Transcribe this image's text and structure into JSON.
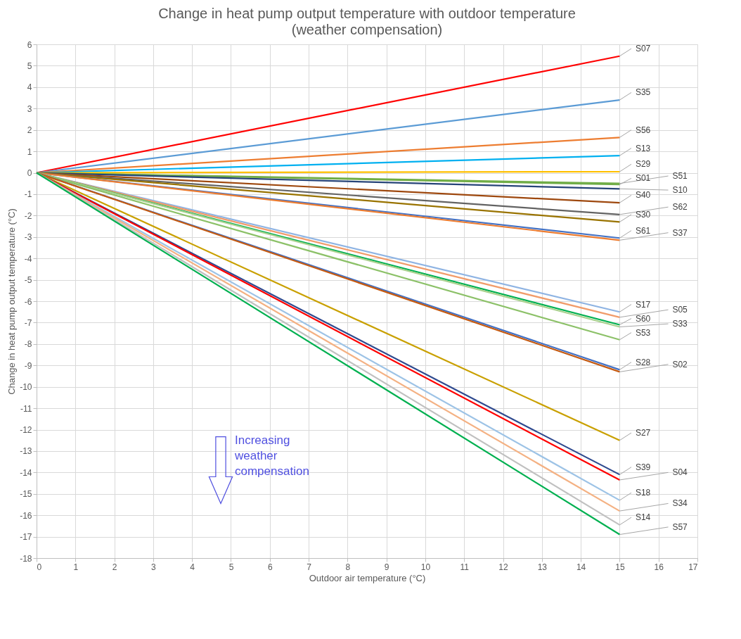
{
  "chart_data": {
    "type": "line",
    "title": "Change in heat pump output temperature with outdoor temperature",
    "subtitle": "(weather compensation)",
    "xlabel": "Outdoor air temperature (°C)",
    "ylabel": "Change in heat pump output temperature (°C)",
    "x": [
      0,
      15
    ],
    "series": [
      {
        "name": "S07",
        "color": "#ff0000",
        "values": [
          0,
          5.45
        ]
      },
      {
        "name": "S35",
        "color": "#5b9bd5",
        "values": [
          0,
          3.4
        ]
      },
      {
        "name": "S56",
        "color": "#ed7d31",
        "values": [
          0,
          1.65
        ]
      },
      {
        "name": "S13",
        "color": "#00b0f0",
        "values": [
          0,
          0.8
        ]
      },
      {
        "name": "S29",
        "color": "#ffc000",
        "values": [
          0,
          0.05
        ]
      },
      {
        "name": "S51",
        "color": "#70ad47",
        "values": [
          0,
          -0.5
        ]
      },
      {
        "name": "S01",
        "color": "#70ad47",
        "values": [
          0,
          -0.55
        ]
      },
      {
        "name": "S10",
        "color": "#264478",
        "values": [
          0,
          -0.75
        ]
      },
      {
        "name": "S40",
        "color": "#9e480e",
        "values": [
          0,
          -1.4
        ]
      },
      {
        "name": "S62",
        "color": "#636363",
        "values": [
          0,
          -1.95
        ]
      },
      {
        "name": "S30",
        "color": "#997300",
        "values": [
          0,
          -2.3
        ]
      },
      {
        "name": "S61",
        "color": "#4472c4",
        "values": [
          0,
          -3.05
        ]
      },
      {
        "name": "S37",
        "color": "#ed7d31",
        "values": [
          0,
          -3.15
        ]
      },
      {
        "name": "S17",
        "color": "#8fb4e3",
        "values": [
          0,
          -6.5
        ]
      },
      {
        "name": "S05",
        "color": "#f19c6b",
        "values": [
          0,
          -6.75
        ]
      },
      {
        "name": "S60",
        "color": "#00b050",
        "values": [
          0,
          -7.1
        ]
      },
      {
        "name": "S33",
        "color": "#a9d18e",
        "values": [
          0,
          -7.2
        ]
      },
      {
        "name": "S53",
        "color": "#8cc168",
        "values": [
          0,
          -7.8
        ]
      },
      {
        "name": "S28",
        "color": "#4472c4",
        "values": [
          0,
          -9.2
        ]
      },
      {
        "name": "S02",
        "color": "#c55a11",
        "values": [
          0,
          -9.3
        ]
      },
      {
        "name": "S27",
        "color": "#c9a000",
        "values": [
          0,
          -12.5
        ]
      },
      {
        "name": "S39",
        "color": "#2f4a8f",
        "values": [
          0,
          -14.1
        ]
      },
      {
        "name": "S04",
        "color": "#ff0000",
        "values": [
          0,
          -14.35
        ]
      },
      {
        "name": "S18",
        "color": "#9dc3e6",
        "values": [
          0,
          -15.3
        ]
      },
      {
        "name": "S34",
        "color": "#f4b183",
        "values": [
          0,
          -15.8
        ]
      },
      {
        "name": "S14",
        "color": "#c0c0c0",
        "values": [
          0,
          -16.45
        ]
      },
      {
        "name": "S57",
        "color": "#00b050",
        "values": [
          0,
          -16.9
        ]
      }
    ],
    "xlim": [
      0,
      17
    ],
    "xticks": [
      0,
      1,
      2,
      3,
      4,
      5,
      6,
      7,
      8,
      9,
      10,
      11,
      12,
      13,
      14,
      15,
      16,
      17
    ],
    "ylim": [
      -18,
      6
    ],
    "yticks": [
      -18,
      -17,
      -16,
      -15,
      -14,
      -13,
      -12,
      -11,
      -10,
      -9,
      -8,
      -7,
      -6,
      -5,
      -4,
      -3,
      -2,
      -1,
      0,
      1,
      2,
      3,
      4,
      5,
      6
    ],
    "grid": true,
    "legend": false,
    "marker": "none",
    "line_style": "solid",
    "annotations": [
      "Increasing weather compensation"
    ]
  }
}
